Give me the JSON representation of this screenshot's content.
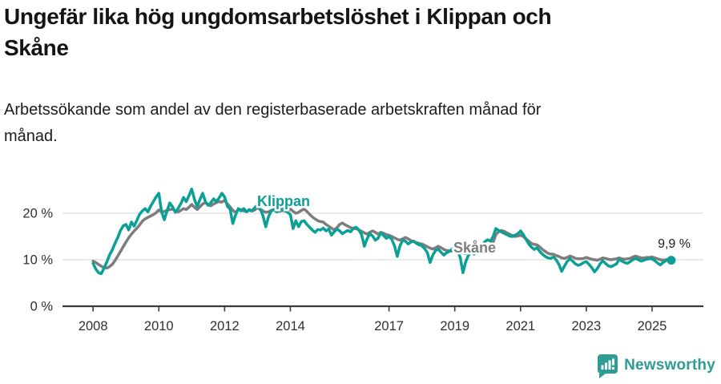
{
  "header": {
    "title": "Ungefär lika hög ungdomsarbetslöshet i Klippan och\nSkåne",
    "subtitle": "Arbetssökande som andel av den registerbaserade arbetskraften månad för\nmånad."
  },
  "chart_data": {
    "type": "line",
    "title": "Ungefär lika hög ungdomsarbetslöshet i Klippan och Skåne",
    "subtitle": "Arbetssökande som andel av den registerbaserade arbetskraften månad för månad.",
    "x_unit": "year-month",
    "y_unit": "%",
    "start_year": 2008,
    "points_per_year": 12,
    "x_range_years": [
      2007.07,
      2026.56
    ],
    "ylim": [
      0,
      28
    ],
    "grid": "horizontal",
    "legend": "inline-labels",
    "x_ticks": [
      {
        "value": 2008,
        "label": "2008"
      },
      {
        "value": 2010,
        "label": "2010"
      },
      {
        "value": 2012,
        "label": "2012"
      },
      {
        "value": 2014,
        "label": "2014"
      },
      {
        "value": 2017,
        "label": "2017"
      },
      {
        "value": 2019,
        "label": "2019"
      },
      {
        "value": 2021,
        "label": "2021"
      },
      {
        "value": 2023,
        "label": "2023"
      },
      {
        "value": 2025,
        "label": "2025"
      }
    ],
    "y_ticks": [
      {
        "value": 0,
        "label": "0 %"
      },
      {
        "value": 10,
        "label": "10 %"
      },
      {
        "value": 20,
        "label": "20 %"
      }
    ],
    "series": [
      {
        "name": "Skåne",
        "color": "#7d7d7d",
        "values": [
          9.7,
          9.4,
          9.0,
          8.6,
          8.3,
          8.2,
          8.5,
          9.0,
          9.8,
          10.8,
          11.8,
          12.8,
          13.8,
          14.7,
          15.5,
          16.2,
          16.8,
          17.5,
          18.3,
          18.8,
          19.1,
          19.4,
          19.7,
          20.1,
          20.7,
          20.3,
          20.4,
          20.6,
          20.8,
          20.9,
          20.5,
          20.3,
          20.6,
          21.0,
          20.8,
          21.3,
          21.9,
          21.3,
          20.8,
          21.4,
          22.0,
          22.3,
          21.8,
          21.6,
          22.0,
          22.3,
          22.5,
          22.4,
          22.8,
          22.0,
          21.4,
          20.6,
          20.2,
          20.7,
          20.8,
          20.5,
          20.4,
          20.6,
          20.5,
          20.7,
          21.2,
          20.8,
          20.5,
          20.2,
          20.3,
          20.6,
          20.8,
          20.5,
          20.4,
          20.6,
          20.5,
          20.4,
          20.9,
          20.4,
          20.0,
          20.2,
          20.6,
          20.9,
          20.4,
          19.8,
          19.2,
          18.8,
          18.4,
          18.2,
          18.1,
          17.6,
          17.2,
          16.8,
          16.4,
          16.9,
          17.6,
          17.9,
          17.5,
          17.2,
          16.9,
          16.7,
          16.7,
          16.4,
          16.1,
          15.8,
          15.5,
          15.9,
          16.2,
          15.9,
          15.5,
          15.9,
          15.7,
          15.4,
          15.3,
          15.0,
          14.7,
          14.4,
          14.2,
          14.5,
          14.8,
          14.5,
          14.1,
          13.9,
          13.7,
          13.5,
          13.4,
          13.1,
          12.8,
          12.5,
          12.3,
          12.6,
          12.9,
          12.6,
          12.2,
          12.0,
          11.9,
          11.9,
          12.0,
          11.8,
          11.6,
          11.4,
          11.3,
          11.7,
          12.1,
          11.9,
          11.7,
          11.8,
          12.0,
          12.5,
          13.0,
          13.2,
          13.8,
          15.4,
          16.0,
          16.3,
          16.1,
          15.8,
          15.5,
          15.2,
          15.0,
          15.1,
          15.3,
          15.0,
          14.5,
          14.0,
          13.5,
          13.3,
          13.2,
          12.8,
          12.2,
          11.8,
          11.4,
          11.2,
          11.2,
          10.9,
          10.7,
          10.4,
          10.3,
          10.5,
          10.8,
          10.6,
          10.3,
          10.2,
          10.2,
          10.3,
          10.5,
          10.3,
          10.1,
          10.0,
          9.9,
          10.1,
          10.4,
          10.3,
          10.1,
          10.0,
          10.1,
          10.2,
          10.4,
          10.2,
          10.1,
          10.2,
          10.3,
          10.6,
          10.8,
          10.6,
          10.4,
          10.4,
          10.5,
          10.5,
          10.6,
          10.4,
          10.2,
          10.0,
          9.9,
          10.0,
          10.1
        ]
      },
      {
        "name": "Klippan",
        "color": "#0aa096",
        "values": [
          9.2,
          8.0,
          7.2,
          7.0,
          8.2,
          9.5,
          11.0,
          12.1,
          13.5,
          14.8,
          16.3,
          17.3,
          17.6,
          16.4,
          18.1,
          17.2,
          18.5,
          19.8,
          20.5,
          21.0,
          20.3,
          21.5,
          22.5,
          23.5,
          24.3,
          20.3,
          18.6,
          20.5,
          22.2,
          21.4,
          20.2,
          21.0,
          22.0,
          23.4,
          22.5,
          23.8,
          25.2,
          23.0,
          21.4,
          23.0,
          24.3,
          22.5,
          21.7,
          22.3,
          23.1,
          22.5,
          23.3,
          24.3,
          23.5,
          21.5,
          20.9,
          17.8,
          19.6,
          21.0,
          20.5,
          21.0,
          20.3,
          20.8,
          20.5,
          21.2,
          21.7,
          21.0,
          19.5,
          17.1,
          19.2,
          20.5,
          20.8,
          20.3,
          20.6,
          21.0,
          20.6,
          20.2,
          19.7,
          16.7,
          18.4,
          17.1,
          18.2,
          18.4,
          17.6,
          17.0,
          16.4,
          15.9,
          16.5,
          16.4,
          16.8,
          16.2,
          16.6,
          15.3,
          16.0,
          16.6,
          16.2,
          15.6,
          16.0,
          16.3,
          16.0,
          16.8,
          17.0,
          16.4,
          15.4,
          12.9,
          14.5,
          15.6,
          15.1,
          14.2,
          14.6,
          15.8,
          15.2,
          14.6,
          15.0,
          14.4,
          13.0,
          10.7,
          13.0,
          14.2,
          14.0,
          13.4,
          13.8,
          14.0,
          13.5,
          13.2,
          13.0,
          12.4,
          11.5,
          9.4,
          11.0,
          12.0,
          12.3,
          11.6,
          11.0,
          11.5,
          11.8,
          12.3,
          12.6,
          12.0,
          10.5,
          7.2,
          9.6,
          11.0,
          11.6,
          11.2,
          11.8,
          12.6,
          13.2,
          13.9,
          14.3,
          14.0,
          15.0,
          16.7,
          16.3,
          16.0,
          15.7,
          15.4,
          15.1,
          15.0,
          15.3,
          15.6,
          16.2,
          15.4,
          14.4,
          13.4,
          12.7,
          12.2,
          12.6,
          11.8,
          11.2,
          10.7,
          10.4,
          10.3,
          10.6,
          10.0,
          9.0,
          7.5,
          8.6,
          9.6,
          10.2,
          9.7,
          9.1,
          8.8,
          9.0,
          9.4,
          9.6,
          9.0,
          8.3,
          7.4,
          8.1,
          9.1,
          9.8,
          9.2,
          8.7,
          8.5,
          8.8,
          9.1,
          10.1,
          9.7,
          9.4,
          9.2,
          9.6,
          10.0,
          10.3,
          10.0,
          9.7,
          9.9,
          10.1,
          10.2,
          10.2,
          9.8,
          9.3,
          8.9,
          9.4,
          9.8,
          10.0,
          9.9
        ]
      }
    ],
    "end_annotation": {
      "series": "Klippan",
      "text": "9,9 %",
      "value": 9.9
    }
  },
  "logo": {
    "text": "Newsworthy",
    "color": "#2f9c93"
  }
}
